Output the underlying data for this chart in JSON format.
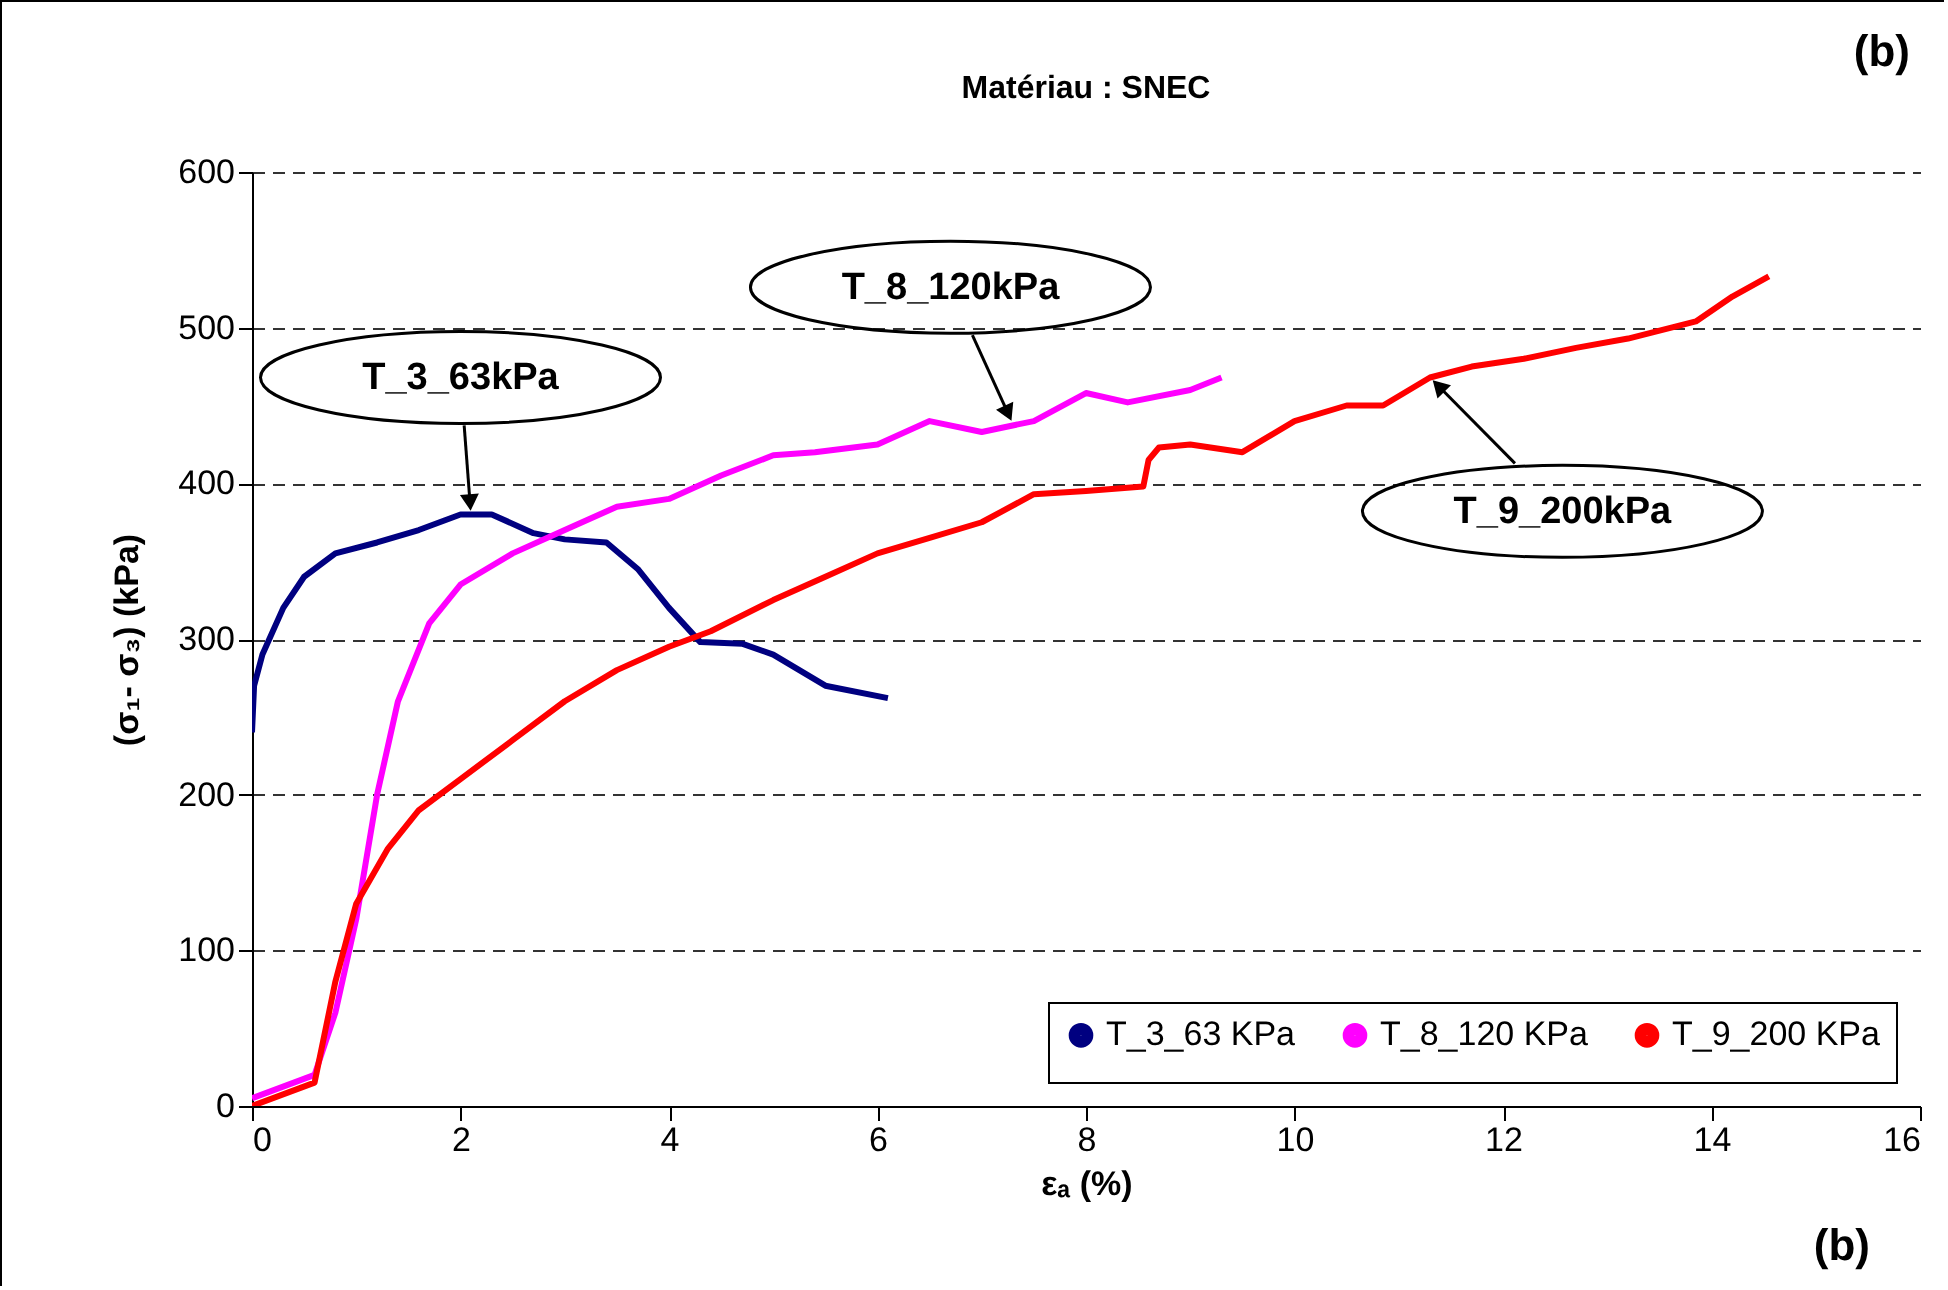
{
  "chart_data": {
    "type": "line",
    "title": "Matériau : SNEC",
    "xlabel": "εₐ (%)",
    "ylabel": "(σ₁- σ₃) (kPa)",
    "xlim": [
      0,
      16
    ],
    "xticks": [
      0,
      2,
      4,
      6,
      8,
      10,
      12,
      14,
      16
    ],
    "ylim": [
      0,
      600
    ],
    "yticks": [
      0,
      100,
      200,
      300,
      400,
      500,
      600
    ],
    "grid": "y",
    "legend": "bottom right",
    "marker": "none",
    "line_style": "solid",
    "series": [
      {
        "name": "T_3_63 KPa",
        "color": "#000080",
        "x": [
          0,
          0.02,
          0.1,
          0.3,
          0.5,
          0.8,
          1.2,
          1.6,
          2.0,
          2.3,
          2.7,
          3.0,
          3.4,
          3.7,
          4.0,
          4.3,
          4.7,
          5.0,
          5.5,
          6.1
        ],
        "values": [
          240,
          270,
          290,
          320,
          340,
          355,
          362,
          370,
          380,
          380,
          368,
          364,
          362,
          345,
          320,
          298,
          297,
          290,
          270,
          262
        ]
      },
      {
        "name": "T_8_120 KPa",
        "color": "#ff00ff",
        "x": [
          0,
          0.6,
          0.8,
          1.0,
          1.2,
          1.4,
          1.7,
          2.0,
          2.5,
          3.0,
          3.5,
          4.0,
          4.5,
          5.0,
          5.4,
          6.0,
          6.5,
          7.0,
          7.5,
          8.0,
          8.4,
          9.0,
          9.3
        ],
        "values": [
          5,
          20,
          60,
          120,
          200,
          260,
          310,
          335,
          355,
          370,
          385,
          390,
          405,
          418,
          420,
          425,
          440,
          433,
          440,
          458,
          452,
          460,
          468
        ]
      },
      {
        "name": "T_9_200 KPa",
        "color": "#ff0000",
        "x": [
          0,
          0.6,
          0.8,
          1.0,
          1.3,
          1.6,
          2.0,
          2.5,
          3.0,
          3.5,
          4.0,
          4.4,
          5.0,
          5.5,
          6.0,
          6.5,
          7.0,
          7.5,
          8.0,
          8.55,
          8.6,
          8.7,
          9.0,
          9.5,
          10.0,
          10.5,
          10.85,
          11.3,
          11.7,
          12.2,
          12.7,
          13.2,
          13.85,
          14.2,
          14.55
        ],
        "values": [
          0,
          15,
          80,
          130,
          165,
          190,
          210,
          235,
          260,
          280,
          295,
          305,
          325,
          340,
          355,
          365,
          375,
          393,
          395,
          398,
          415,
          423,
          425,
          420,
          440,
          450,
          450,
          468,
          475,
          480,
          487,
          493,
          504,
          520,
          533
        ]
      }
    ],
    "annotations": [
      {
        "text": "T_3_63kPa",
        "x": 2.1,
        "y": 380
      },
      {
        "text": "T_8_120kPa",
        "x": 7.3,
        "y": 438
      },
      {
        "text": "T_9_200kPa",
        "x": 11.3,
        "y": 468
      },
      "(b)",
      "(b)"
    ]
  }
}
